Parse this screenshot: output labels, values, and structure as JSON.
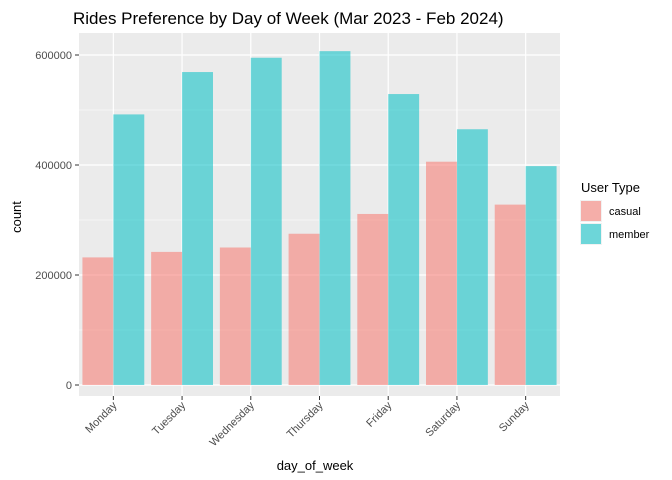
{
  "chart_data": {
    "type": "bar",
    "title": "Rides Preference by Day  of Week (Mar 2023 - Feb 2024)",
    "xlabel": "day_of_week",
    "ylabel": "count",
    "categories": [
      "Monday",
      "Tuesday",
      "Wednesday",
      "Thursday",
      "Friday",
      "Saturday",
      "Sunday"
    ],
    "series": [
      {
        "name": "casual",
        "color": "#F8766D",
        "values": [
          232000,
          242000,
          250000,
          275000,
          311000,
          406000,
          328000
        ]
      },
      {
        "name": "member",
        "color": "#00BFC4",
        "values": [
          492000,
          569000,
          595000,
          607000,
          529000,
          465000,
          398000
        ]
      }
    ],
    "ylim": [
      -20000,
      640000
    ],
    "yticks": [
      0,
      200000,
      400000,
      600000
    ],
    "ytick_labels": [
      "0",
      "200000",
      "400000",
      "600000"
    ],
    "legend": {
      "title": "User Type",
      "placement": "right"
    },
    "grid": true,
    "bar_opacity": 0.55,
    "panel_background": "#EBEBEB",
    "grid_color": "#FFFFFF"
  }
}
